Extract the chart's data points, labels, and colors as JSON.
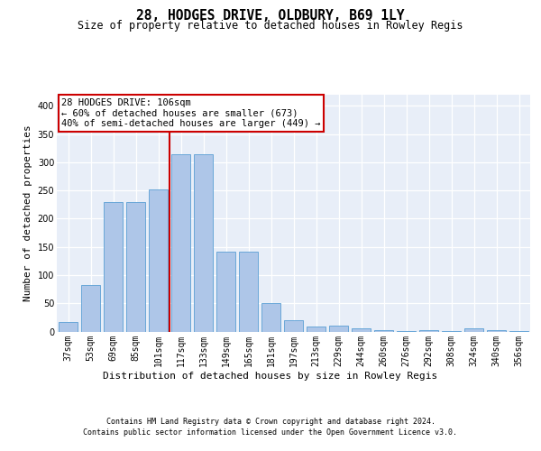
{
  "title": "28, HODGES DRIVE, OLDBURY, B69 1LY",
  "subtitle": "Size of property relative to detached houses in Rowley Regis",
  "xlabel": "Distribution of detached houses by size in Rowley Regis",
  "ylabel": "Number of detached properties",
  "footer_line1": "Contains HM Land Registry data © Crown copyright and database right 2024.",
  "footer_line2": "Contains public sector information licensed under the Open Government Licence v3.0.",
  "categories": [
    "37sqm",
    "53sqm",
    "69sqm",
    "85sqm",
    "101sqm",
    "117sqm",
    "133sqm",
    "149sqm",
    "165sqm",
    "181sqm",
    "197sqm",
    "213sqm",
    "229sqm",
    "244sqm",
    "260sqm",
    "276sqm",
    "292sqm",
    "308sqm",
    "324sqm",
    "340sqm",
    "356sqm"
  ],
  "bar_heights": [
    17,
    83,
    230,
    230,
    252,
    315,
    315,
    142,
    142,
    51,
    20,
    9,
    10,
    5,
    3,
    1,
    3,
    1,
    5,
    3,
    1
  ],
  "bar_color": "#aec6e8",
  "bar_edge_color": "#5a9fd4",
  "vline_x_idx": 4.5,
  "vline_color": "#cc0000",
  "annotation_text": "28 HODGES DRIVE: 106sqm\n← 60% of detached houses are smaller (673)\n40% of semi-detached houses are larger (449) →",
  "annotation_box_color": "#cc0000",
  "ylim_max": 420,
  "yticks": [
    0,
    50,
    100,
    150,
    200,
    250,
    300,
    350,
    400
  ],
  "background_color": "#e8eef8",
  "grid_color": "#ffffff",
  "title_fontsize": 10.5,
  "subtitle_fontsize": 8.5,
  "ylabel_fontsize": 8,
  "xlabel_fontsize": 8,
  "tick_fontsize": 7,
  "annot_fontsize": 7.5,
  "footer_fontsize": 6
}
